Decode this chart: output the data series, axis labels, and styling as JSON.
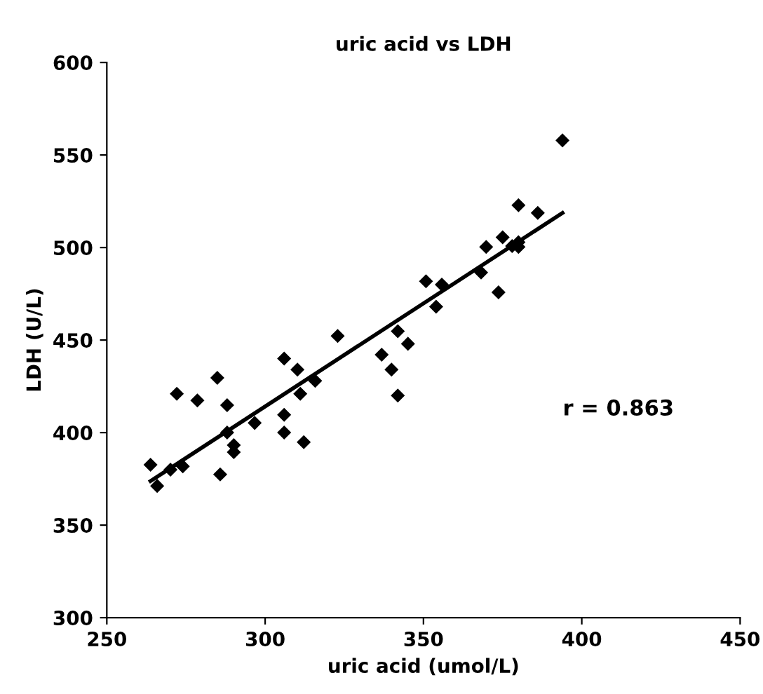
{
  "chart_data": {
    "type": "scatter",
    "title": "uric acid vs LDH",
    "xlabel": "uric acid (umol/L)",
    "ylabel": "LDH (U/L)",
    "xlim": [
      250,
      450
    ],
    "ylim": [
      300,
      600
    ],
    "xticks": [
      250,
      300,
      350,
      400,
      450
    ],
    "yticks": [
      300,
      350,
      400,
      450,
      500,
      550,
      600
    ],
    "grid": false,
    "legend": false,
    "marker": "diamond",
    "annotations": [
      "r = 0.863"
    ],
    "series": [
      {
        "color": "#000000",
        "x": [
          263.8,
          265.9,
          270.1,
          272.1,
          274,
          278.6,
          284.9,
          285.8,
          288,
          288,
          290.1,
          290.1,
          296.7,
          306,
          306,
          306,
          310.2,
          311.1,
          312.2,
          315.8,
          322.9,
          336.8,
          339.9,
          341.9,
          341.9,
          345.1,
          350.8,
          354,
          355.8,
          368.2,
          369.8,
          373.7,
          375,
          378,
          380,
          380,
          380,
          386.1,
          393.9
        ],
        "values": [
          382.6,
          371.2,
          380,
          421,
          381.8,
          417.4,
          429.6,
          377.4,
          414.8,
          400,
          393.2,
          389.4,
          405.2,
          440,
          409.6,
          400,
          434,
          421,
          394.8,
          428,
          452.2,
          442.1,
          434,
          454.8,
          420,
          448,
          481.8,
          468,
          480,
          486.5,
          500.3,
          475.8,
          505.5,
          500.8,
          522.9,
          502.9,
          500.3,
          518.7,
          557.9
        ]
      },
      {
        "type": "line",
        "color": "#000000",
        "marker": "none",
        "line_style": "solid",
        "x": [
          263.8,
          393.9
        ],
        "values": [
          373.8,
          518.7
        ]
      }
    ]
  }
}
